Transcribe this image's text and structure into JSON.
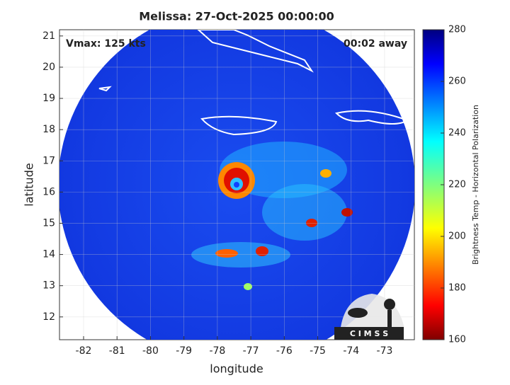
{
  "title": "Melissa: 27-Oct-2025 00:00:00",
  "annotations": {
    "vmax": "Vmax: 125 kts",
    "time_offset": "00:02 away"
  },
  "map": {
    "xlabel": "longitude",
    "ylabel": "latitude",
    "xlim": [
      -82.72,
      -72.11
    ],
    "ylim": [
      11.27,
      21.2
    ],
    "xticks": [
      -82,
      -81,
      -80,
      -79,
      -78,
      -77,
      -76,
      -75,
      -74,
      -73
    ],
    "yticks": [
      12,
      13,
      14,
      15,
      16,
      17,
      18,
      19,
      20,
      21
    ],
    "grid": true
  },
  "colorbar": {
    "label": "Brightness Temp - Horizontal Polarization",
    "lim": [
      160,
      280
    ],
    "ticks": [
      160,
      180,
      200,
      220,
      240,
      260,
      280
    ],
    "colormap": "jet"
  },
  "logo_text": "C I M S S"
}
